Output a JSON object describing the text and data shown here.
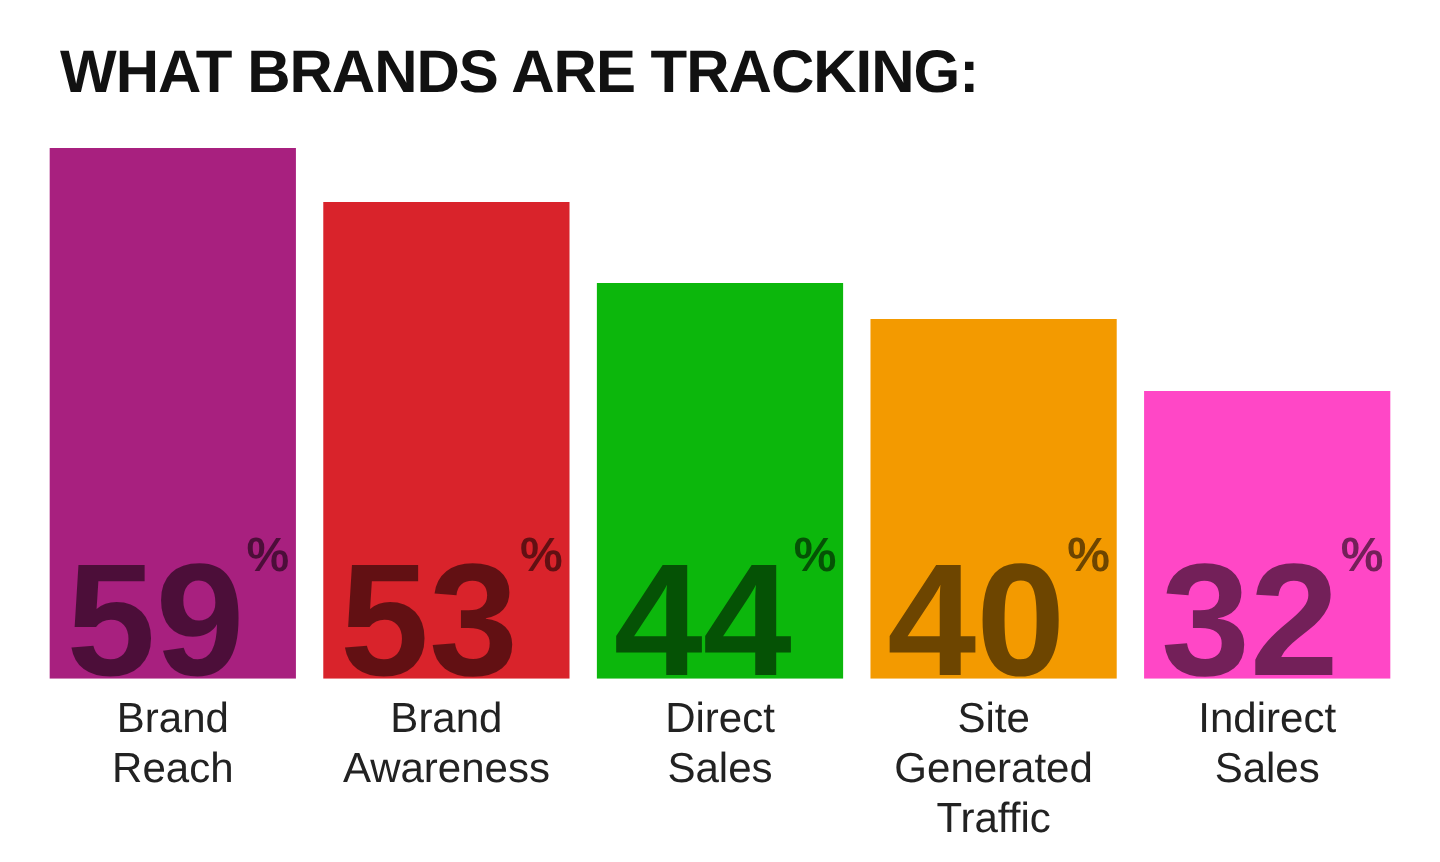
{
  "chart_data": {
    "type": "bar",
    "title": "WHAT BRANDS ARE TRACKING:",
    "categories": [
      "Brand Reach",
      "Brand Awareness",
      "Direct Sales",
      "Site Generated Traffic",
      "Indirect Sales"
    ],
    "values": [
      59,
      53,
      44,
      40,
      32
    ],
    "colors": [
      "#a8207f",
      "#d9232b",
      "#0cb70c",
      "#f39a00",
      "#ff47c6"
    ],
    "value_labels": [
      "59%",
      "53%",
      "44%",
      "40%",
      "32%"
    ],
    "grid": false,
    "legend": false
  }
}
